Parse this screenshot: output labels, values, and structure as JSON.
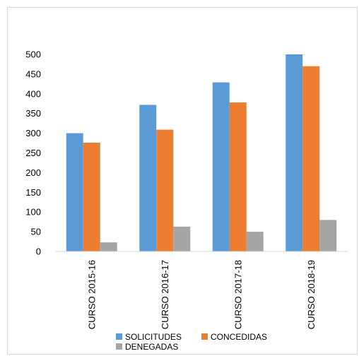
{
  "chart_data": {
    "type": "bar",
    "title": "",
    "xlabel": "",
    "ylabel": "",
    "categories": [
      "CURSO 2015-16",
      "CURSO 2016-17",
      "CURSO 2017-18",
      "CURSO 2018-19"
    ],
    "series": [
      {
        "name": "SOLICITUDES",
        "color": "#5b9bd5",
        "values": [
          300,
          372,
          429,
          500
        ]
      },
      {
        "name": "CONCEDIDAS",
        "color": "#ed7d31",
        "values": [
          276,
          309,
          378,
          470
        ]
      },
      {
        "name": "DENEGADAS",
        "color": "#a5a5a5",
        "values": [
          23,
          63,
          50,
          80
        ]
      }
    ],
    "ylim": [
      0,
      500
    ],
    "yticks": [
      "500",
      "450",
      "400",
      "350",
      "300",
      "250",
      "200",
      "150",
      "100",
      "50",
      "0"
    ],
    "grid": false,
    "legend_position": "bottom"
  }
}
